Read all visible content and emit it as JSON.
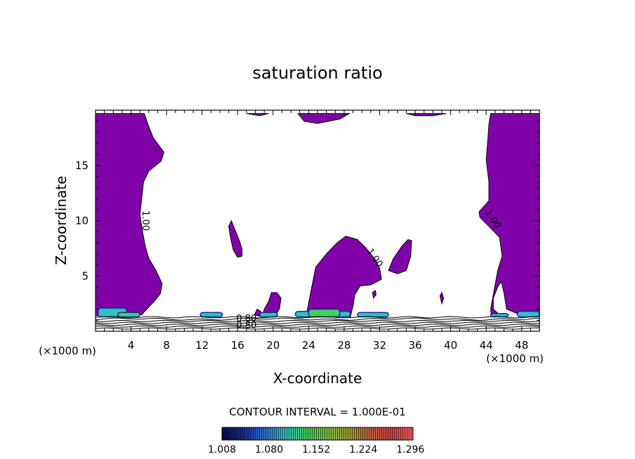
{
  "chart_data": {
    "type": "heatmap",
    "title": "saturation ratio",
    "xlabel": "X-coordinate",
    "ylabel": "Z-coordinate",
    "x_unit_left": "(×1000 m)",
    "x_unit_right": "(×1000 m)",
    "xlim": [
      0,
      50
    ],
    "ylim": [
      0,
      20
    ],
    "x_ticks": [
      4,
      8,
      12,
      16,
      20,
      24,
      28,
      32,
      36,
      40,
      44,
      48
    ],
    "y_ticks": [
      5,
      10,
      15
    ],
    "contour_labels": [
      {
        "text": "1.00",
        "x": 5.3,
        "z": 10.0,
        "angle": 90
      },
      {
        "text": "1.00",
        "x": 31.2,
        "z": 6.5,
        "angle": 55
      },
      {
        "text": "1.00",
        "x": 44.5,
        "z": 10.0,
        "angle": 55
      },
      {
        "text": "0.80",
        "x": 17.0,
        "z": 0.9,
        "angle": 0
      },
      {
        "text": "0.80",
        "x": 17.0,
        "z": 0.3,
        "angle": 0
      }
    ],
    "contour_interval": "CONTOUR INTERVAL = 1.000E-01",
    "colorbar": {
      "min": 1.008,
      "max": 1.3,
      "tick_labels": [
        "1.008",
        "1.080",
        "1.152",
        "1.224",
        "1.296"
      ],
      "colors": [
        "#0a0a4a",
        "#1a2a9a",
        "#2a70d0",
        "#30c0c0",
        "#40d060",
        "#80c040",
        "#a0a030",
        "#c06040",
        "#d04040",
        "#ff6060"
      ]
    },
    "supersaturated_fill_color": "#7f00a8",
    "regions": [
      {
        "name": "left-column",
        "x_range": [
          0,
          8
        ],
        "z_range": [
          1.3,
          19.7
        ]
      },
      {
        "name": "right-column",
        "x_range": [
          43,
          50
        ],
        "z_range": [
          1.3,
          19.7
        ]
      },
      {
        "name": "central-cell",
        "x_range": [
          23,
          33
        ],
        "z_range": [
          1.3,
          8.6
        ]
      },
      {
        "name": "upper-strip",
        "x_range": [
          22,
          28
        ],
        "z_range": [
          18.8,
          19.7
        ]
      }
    ]
  }
}
